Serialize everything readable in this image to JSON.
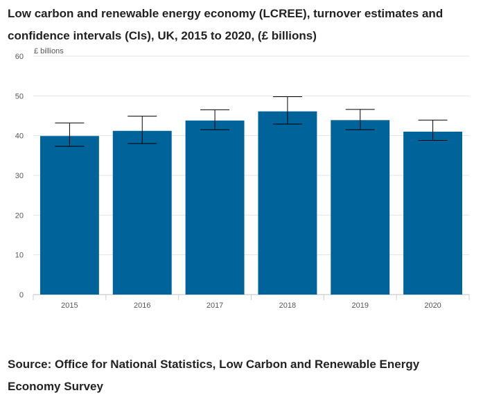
{
  "header": {
    "title": "Low carbon and renewable energy economy (LCREE), turnover estimates and confidence intervals (CIs), UK, 2015 to 2020, (£ billions)"
  },
  "footer": {
    "source": "Source: Office for National Statistics, Low Carbon and Renewable Energy Economy Survey"
  },
  "chart_data": {
    "type": "bar",
    "title": "Low carbon and renewable energy economy (LCREE), turnover estimates and confidence intervals (CIs), UK, 2015 to 2020, (£ billions)",
    "ylabel": "£ billions",
    "xlabel": "",
    "categories": [
      "2015",
      "2016",
      "2017",
      "2018",
      "2019",
      "2020"
    ],
    "values": [
      39.9,
      41.2,
      43.8,
      46.1,
      43.9,
      41.0
    ],
    "ci_lower": [
      37.3,
      38.0,
      41.5,
      42.9,
      41.5,
      38.8
    ],
    "ci_upper": [
      43.2,
      44.9,
      46.5,
      49.8,
      46.6,
      43.9
    ],
    "ylim": [
      0,
      60
    ],
    "yticks": [
      0,
      10,
      20,
      30,
      40,
      50,
      60
    ],
    "grid": true,
    "legend": "none",
    "bar_color": "#00639a",
    "error_bar_color": "#000000"
  }
}
